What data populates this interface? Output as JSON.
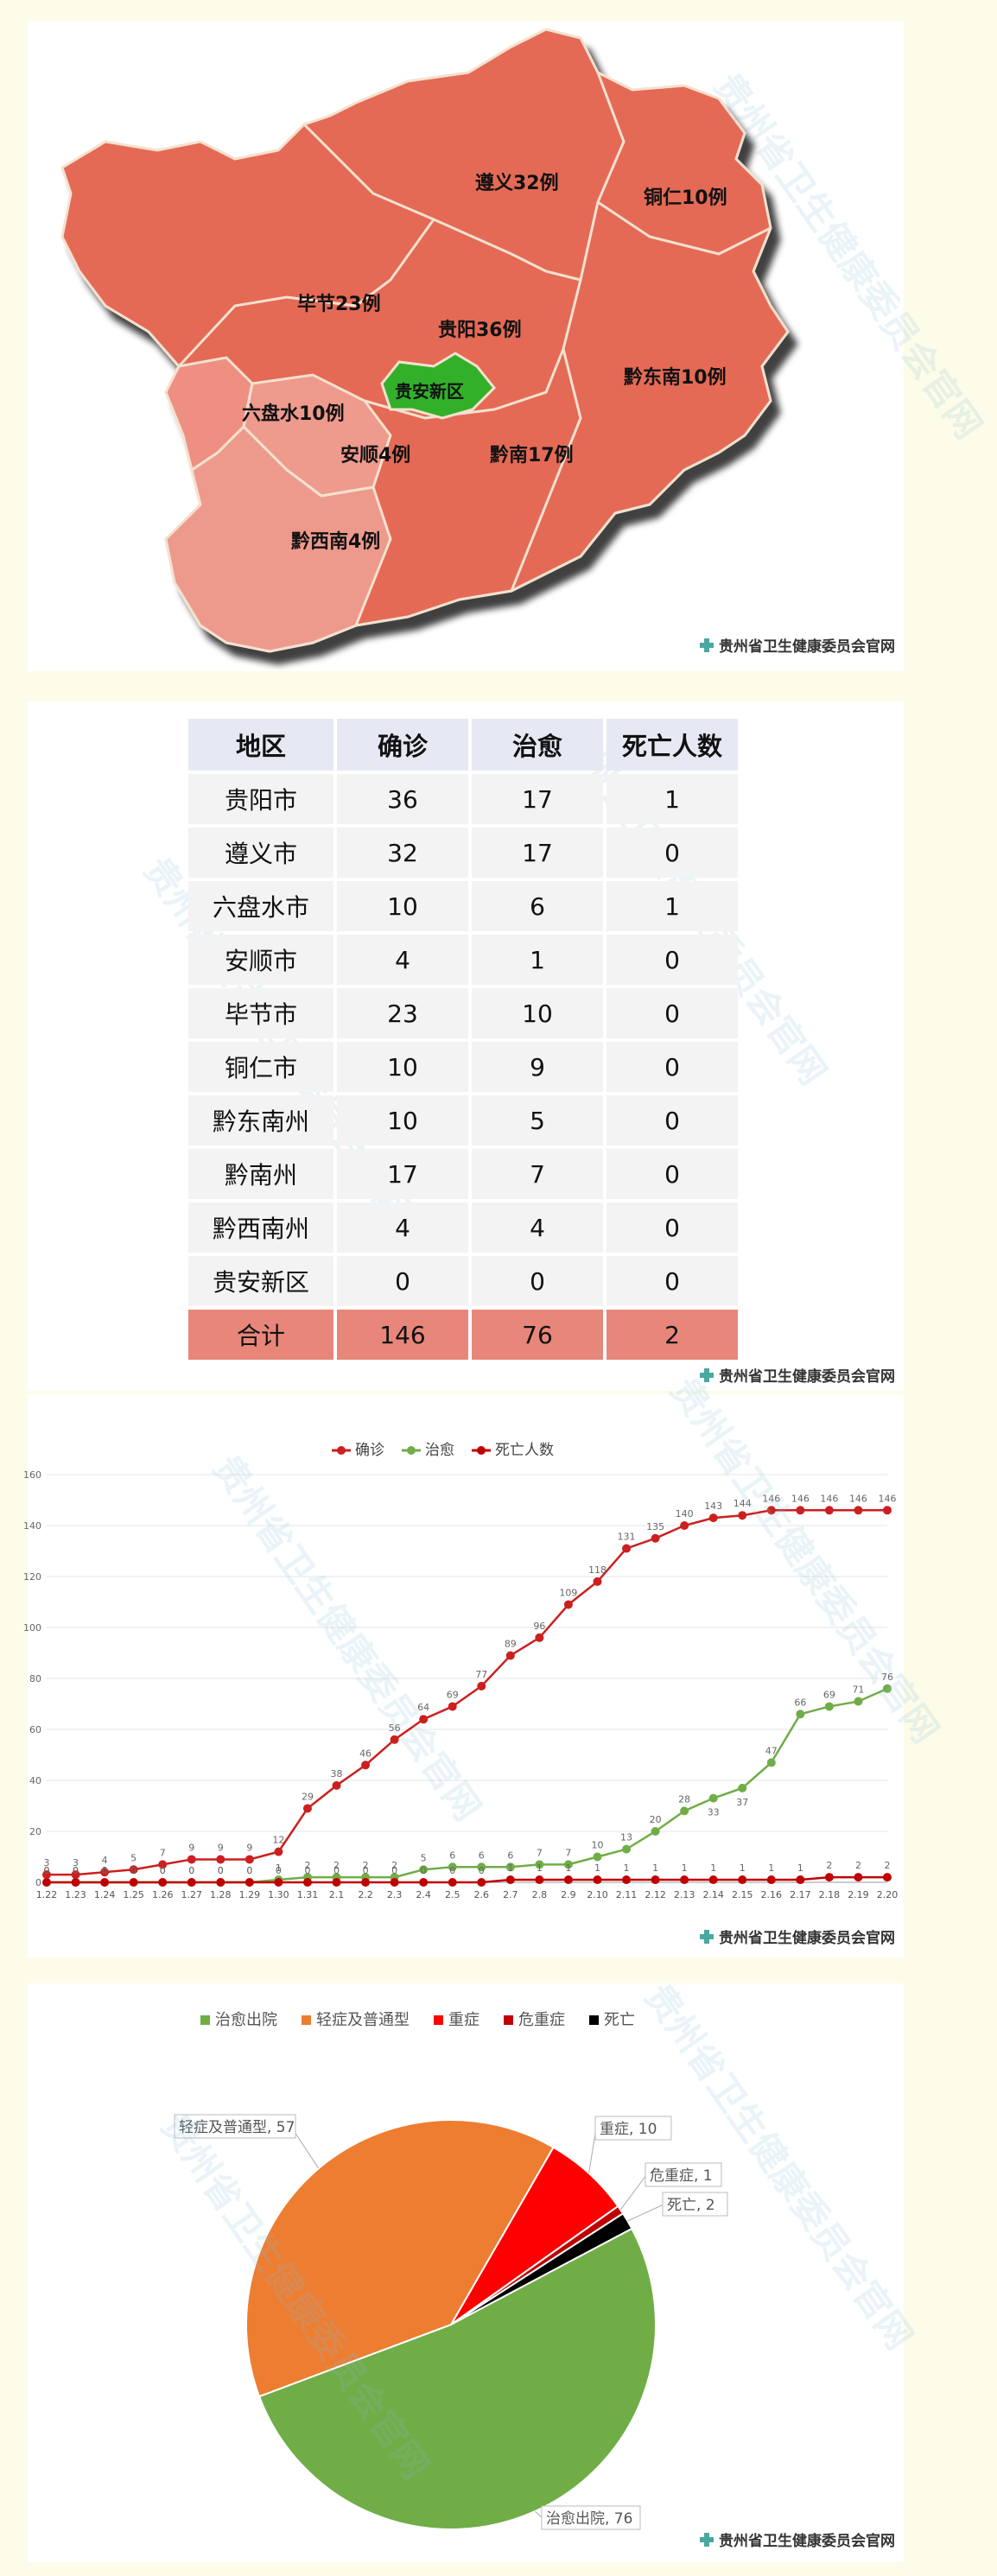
{
  "credit": "贵州省卫生健康委员会官网",
  "map": {
    "regions": [
      {
        "name": "遵义32例"
      },
      {
        "name": "铜仁10例"
      },
      {
        "name": "毕节23例"
      },
      {
        "name": "贵阳36例"
      },
      {
        "name": "贵安新区"
      },
      {
        "name": "黔东南10例"
      },
      {
        "name": "六盘水10例"
      },
      {
        "name": "安顺4例"
      },
      {
        "name": "黔南17例"
      },
      {
        "name": "黔西南4例"
      }
    ]
  },
  "table": {
    "headers": [
      "地区",
      "确诊",
      "治愈",
      "死亡人数"
    ],
    "rows": [
      [
        "贵阳市",
        "36",
        "17",
        "1"
      ],
      [
        "遵义市",
        "32",
        "17",
        "0"
      ],
      [
        "六盘水市",
        "10",
        "6",
        "1"
      ],
      [
        "安顺市",
        "4",
        "1",
        "0"
      ],
      [
        "毕节市",
        "23",
        "10",
        "0"
      ],
      [
        "铜仁市",
        "10",
        "9",
        "0"
      ],
      [
        "黔东南州",
        "10",
        "5",
        "0"
      ],
      [
        "黔南州",
        "17",
        "7",
        "0"
      ],
      [
        "黔西南州",
        "4",
        "4",
        "0"
      ],
      [
        "贵安新区",
        "0",
        "0",
        "0"
      ]
    ],
    "total": [
      "合计",
      "146",
      "76",
      "2"
    ]
  },
  "chart_data": [
    {
      "type": "line",
      "x": [
        "1.22",
        "1.23",
        "1.24",
        "1.25",
        "1.26",
        "1.27",
        "1.28",
        "1.29",
        "1.30",
        "1.31",
        "2.1",
        "2.2",
        "2.3",
        "2.4",
        "2.5",
        "2.6",
        "2.7",
        "2.8",
        "2.9",
        "2.10",
        "2.11",
        "2.12",
        "2.13",
        "2.14",
        "2.15",
        "2.16",
        "2.17",
        "2.18",
        "2.19",
        "2.20"
      ],
      "series": [
        {
          "name": "确诊",
          "color": "#cc1f1f",
          "values": [
            3,
            3,
            4,
            5,
            7,
            9,
            9,
            9,
            12,
            29,
            38,
            46,
            56,
            64,
            69,
            77,
            89,
            96,
            109,
            118,
            131,
            135,
            140,
            143,
            144,
            146,
            146,
            146,
            146,
            146
          ]
        },
        {
          "name": "治愈",
          "color": "#70ad47",
          "values": [
            0,
            0,
            0,
            0,
            0,
            0,
            0,
            0,
            1,
            2,
            2,
            2,
            2,
            5,
            6,
            6,
            6,
            7,
            7,
            10,
            13,
            20,
            28,
            33,
            37,
            47,
            66,
            69,
            71,
            76
          ]
        },
        {
          "name": "死亡人数",
          "color": "#c00000",
          "values": [
            0,
            0,
            0,
            0,
            0,
            0,
            0,
            0,
            0,
            0,
            0,
            0,
            0,
            0,
            0,
            0,
            1,
            1,
            1,
            1,
            1,
            1,
            1,
            1,
            1,
            1,
            1,
            2,
            2,
            2
          ]
        }
      ],
      "ylim": [
        0,
        160
      ],
      "yticks": [
        "0",
        "20",
        "40",
        "60",
        "80",
        "100",
        "120",
        "140",
        "160"
      ],
      "legend": "top-center",
      "grid": true
    },
    {
      "type": "pie",
      "legend": "top-center",
      "slices": [
        {
          "name": "治愈出院",
          "value": 76,
          "color": "#70ad47",
          "label": "治愈出院, 76"
        },
        {
          "name": "轻症及普通型",
          "value": 57,
          "color": "#ed7d31",
          "label": "轻症及普通型, 57"
        },
        {
          "name": "重症",
          "value": 10,
          "color": "#ff0000",
          "label": "重症, 10"
        },
        {
          "name": "危重症",
          "value": 1,
          "color": "#c00000",
          "label": "危重症, 1"
        },
        {
          "name": "死亡",
          "value": 2,
          "color": "#000000",
          "label": "死亡, 2"
        }
      ]
    }
  ]
}
